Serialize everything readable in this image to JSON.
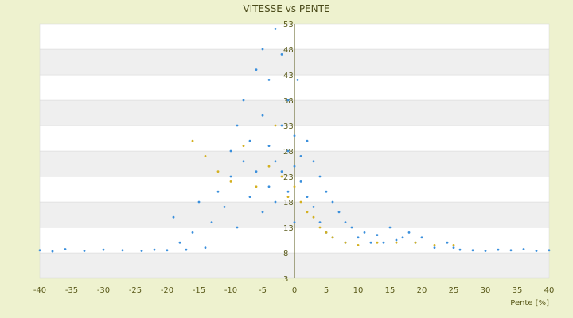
{
  "chart_data": {
    "type": "scatter",
    "title": "VITESSE vs PENTE",
    "xlabel": "Pente [%]",
    "ylabel": "",
    "xlim": [
      -40,
      40
    ],
    "ylim": [
      3,
      53
    ],
    "x_ticks": [
      "-40",
      "-35",
      "-30",
      "-25",
      "-20",
      "-15",
      "-10",
      "-5",
      "0",
      "5",
      "10",
      "15",
      "20",
      "25",
      "30",
      "35",
      "40"
    ],
    "y_ticks": [
      "3",
      "8",
      "13",
      "18",
      "23",
      "28",
      "33",
      "38",
      "43",
      "48",
      "53"
    ],
    "grid": "horizontal bands",
    "series": [
      {
        "color": "#3a8fdc",
        "points": [
          [
            -40,
            8.5
          ],
          [
            -38,
            8.3
          ],
          [
            -36,
            8.7
          ],
          [
            -33,
            8.4
          ],
          [
            -30,
            8.6
          ],
          [
            -27,
            8.5
          ],
          [
            -24,
            8.4
          ],
          [
            -22,
            8.6
          ],
          [
            -20,
            8.5
          ],
          [
            -19,
            15
          ],
          [
            -18,
            10
          ],
          [
            -17,
            8.6
          ],
          [
            -16,
            12
          ],
          [
            -15,
            18
          ],
          [
            -14,
            9
          ],
          [
            -13,
            14
          ],
          [
            -12,
            20
          ],
          [
            -11,
            17
          ],
          [
            -10,
            23
          ],
          [
            -10,
            28
          ],
          [
            -9,
            13
          ],
          [
            -9,
            33
          ],
          [
            -8,
            26
          ],
          [
            -8,
            38
          ],
          [
            -7,
            19
          ],
          [
            -7,
            30
          ],
          [
            -6,
            44
          ],
          [
            -6,
            24
          ],
          [
            -5,
            35
          ],
          [
            -5,
            16
          ],
          [
            -5,
            48
          ],
          [
            -4,
            29
          ],
          [
            -4,
            21
          ],
          [
            -4,
            42
          ],
          [
            -3,
            26
          ],
          [
            -3,
            52
          ],
          [
            -3,
            18
          ],
          [
            -2,
            33
          ],
          [
            -2,
            24
          ],
          [
            -2,
            47
          ],
          [
            -1,
            28
          ],
          [
            -1,
            20
          ],
          [
            -1,
            38
          ],
          [
            0,
            25
          ],
          [
            0,
            31
          ],
          [
            0,
            14
          ],
          [
            0.5,
            42
          ],
          [
            1,
            27
          ],
          [
            1,
            22
          ],
          [
            2,
            30
          ],
          [
            2,
            19
          ],
          [
            3,
            26
          ],
          [
            3,
            17
          ],
          [
            4,
            23
          ],
          [
            4,
            14
          ],
          [
            5,
            20
          ],
          [
            5,
            12
          ],
          [
            6,
            18
          ],
          [
            6,
            11
          ],
          [
            7,
            16
          ],
          [
            8,
            14
          ],
          [
            8,
            10
          ],
          [
            9,
            13
          ],
          [
            10,
            11
          ],
          [
            11,
            12
          ],
          [
            12,
            10
          ],
          [
            13,
            11.5
          ],
          [
            14,
            10
          ],
          [
            15,
            13
          ],
          [
            16,
            10.5
          ],
          [
            17,
            11
          ],
          [
            18,
            12
          ],
          [
            19,
            10
          ],
          [
            20,
            11
          ],
          [
            22,
            9
          ],
          [
            24,
            10
          ],
          [
            25,
            9
          ],
          [
            26,
            8.6
          ],
          [
            28,
            8.5
          ],
          [
            30,
            8.4
          ],
          [
            32,
            8.6
          ],
          [
            34,
            8.5
          ],
          [
            36,
            8.7
          ],
          [
            38,
            8.4
          ],
          [
            40,
            8.5
          ]
        ]
      },
      {
        "color": "#d4b020",
        "points": [
          [
            -16,
            30
          ],
          [
            -14,
            27
          ],
          [
            -12,
            24
          ],
          [
            -10,
            22
          ],
          [
            -8,
            29
          ],
          [
            -6,
            21
          ],
          [
            -4,
            25
          ],
          [
            -3,
            33
          ],
          [
            -2,
            23
          ],
          [
            -1,
            19
          ],
          [
            0,
            21
          ],
          [
            1,
            18
          ],
          [
            2,
            16
          ],
          [
            3,
            15
          ],
          [
            4,
            13
          ],
          [
            5,
            12
          ],
          [
            6,
            11
          ],
          [
            8,
            10
          ],
          [
            10,
            9.5
          ],
          [
            13,
            10
          ],
          [
            16,
            10
          ],
          [
            19,
            10
          ],
          [
            22,
            9.5
          ],
          [
            25,
            9.5
          ]
        ]
      }
    ]
  }
}
